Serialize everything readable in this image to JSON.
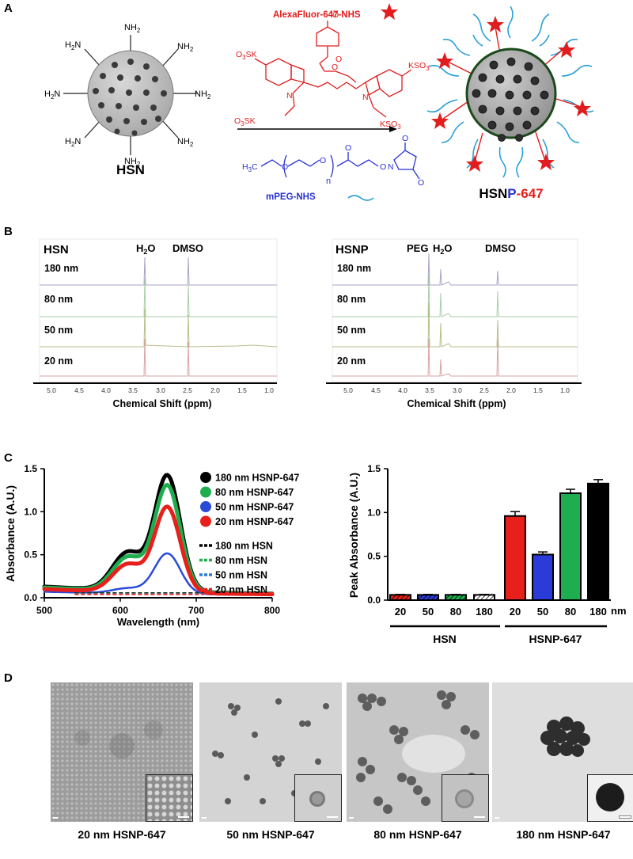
{
  "panels": {
    "a": "A",
    "b": "B",
    "c": "C",
    "d": "D"
  },
  "scheme": {
    "reagent1": "AlexaFluor-647-NHS",
    "reagent2": "mPEG-NHS",
    "nh2": "NH",
    "nh2_sub": "2",
    "so3k": "SO",
    "kso3": "KSO",
    "sub3": "3",
    "o3sk": "O",
    "o3sk_tail": "SK",
    "s_prefix": "S",
    "peg_h3c": "H",
    "peg_c": "C",
    "o": "O",
    "n": "N",
    "n_sub": "n",
    "hsn_label": "HSN",
    "hsnp_h": "HSN",
    "hsnp_p": "P",
    "hsnp_dash": "-",
    "hsnp_num": "647"
  },
  "nmr": {
    "left_title": "HSN",
    "right_title": "HSNP",
    "h2o": "H",
    "h2o_sub": "2",
    "h2o_o": "O",
    "dmso": "DMSO",
    "peg": "PEG",
    "sizes": [
      "180 nm",
      "80 nm",
      "50 nm",
      "20 nm"
    ],
    "ticks": [
      "5.0",
      "4.5",
      "4.0",
      "3.5",
      "3.0",
      "2.5",
      "2.0",
      "1.5",
      "1.0"
    ],
    "xlabel": "Chemical Shift (ppm)"
  },
  "chart_data": [
    {
      "type": "line",
      "xlabel": "Wavelength (nm)",
      "ylabel": "Absorbance (A.U.)",
      "xlim": [
        500,
        800
      ],
      "ylim": [
        0,
        1.5
      ],
      "xticks": [
        "500",
        "600",
        "700",
        "800"
      ],
      "yticks": [
        "0.0",
        "0.5",
        "1.0",
        "1.5"
      ],
      "legend_position": "top-right",
      "series": [
        {
          "name": "180 nm HSNP-647",
          "color": "#000000",
          "style": "dots",
          "peak": 1.38,
          "shoulder": 0.62,
          "base": 0.11
        },
        {
          "name": "80 nm HSNP-647",
          "color": "#1fae4f",
          "style": "dots",
          "peak": 1.27,
          "shoulder": 0.57,
          "base": 0.1
        },
        {
          "name": "50 nm HSNP-647",
          "color": "#2a4bd8",
          "style": "line",
          "peak": 0.51,
          "shoulder": 0.24,
          "base": 0.05
        },
        {
          "name": "20 nm HSNP-647",
          "color": "#e8201c",
          "style": "dots",
          "peak": 1.03,
          "shoulder": 0.5,
          "base": 0.08
        },
        {
          "name": "180 nm HSN",
          "color": "#000000",
          "style": "dash",
          "value": 0.055
        },
        {
          "name": "80 nm HSN",
          "color": "#1fae4f",
          "style": "dash",
          "value": 0.05
        },
        {
          "name": "50 nm HSN",
          "color": "#2a7bd8",
          "style": "dash",
          "value": 0.045
        },
        {
          "name": "20 nm HSN",
          "color": "#e8201c",
          "style": "dash",
          "value": 0.04
        }
      ]
    },
    {
      "type": "bar",
      "ylabel": "Peak Absorbance  (A.U.)",
      "ylim": [
        0,
        1.5
      ],
      "yticks": [
        "0.0",
        "0.5",
        "1.0",
        "1.5"
      ],
      "categories": [
        "20",
        "50",
        "80",
        "180",
        "20",
        "50",
        "80",
        "180"
      ],
      "unit": "nm",
      "groups": [
        "HSN",
        "HSNP-647"
      ],
      "values": [
        0.06,
        0.06,
        0.06,
        0.06,
        0.96,
        0.52,
        1.22,
        1.33
      ],
      "errors": [
        0.005,
        0.005,
        0.005,
        0.005,
        0.05,
        0.03,
        0.045,
        0.045
      ],
      "colors": [
        "#e8201c",
        "#2a3bd8",
        "#1fae4f",
        "#ffffff",
        "#e8201c",
        "#2a3bd8",
        "#1fae4f",
        "#000000"
      ],
      "hatched": [
        true,
        true,
        true,
        true,
        false,
        false,
        false,
        false
      ]
    }
  ],
  "tem": [
    "20 nm HSNP-647",
    "50 nm HSNP-647",
    "80 nm HSNP-647",
    "180 nm HSNP-647"
  ]
}
